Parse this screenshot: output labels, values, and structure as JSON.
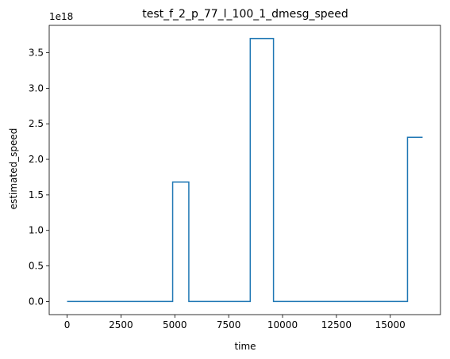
{
  "chart_data": {
    "type": "line",
    "title": "test_f_2_p_77_l_100_1_dmesg_speed",
    "xlabel": "time",
    "ylabel": "estimated_speed",
    "y_offset_label": "1e18",
    "xlim": [
      -830,
      17330
    ],
    "ylim": [
      -0.185,
      3.885
    ],
    "x_ticks": [
      0,
      2500,
      5000,
      7500,
      10000,
      12500,
      15000
    ],
    "x_tick_labels": [
      "0",
      "2500",
      "5000",
      "7500",
      "10000",
      "12500",
      "15000"
    ],
    "y_ticks": [
      0.0,
      0.5,
      1.0,
      1.5,
      2.0,
      2.5,
      3.0,
      3.5
    ],
    "y_tick_labels": [
      "0.0",
      "0.5",
      "1.0",
      "1.5",
      "2.0",
      "2.5",
      "3.0",
      "3.5"
    ],
    "grid": false,
    "color": "#1f77b4",
    "series": [
      {
        "x": [
          0,
          4900,
          4900,
          5650,
          5650,
          8500,
          8500,
          9580,
          9580,
          15800,
          15800,
          16500
        ],
        "y": [
          0.0,
          0.0,
          1.68,
          1.68,
          0.0,
          0.0,
          3.7,
          3.7,
          0.0,
          0.0,
          2.31,
          2.31
        ]
      }
    ]
  }
}
